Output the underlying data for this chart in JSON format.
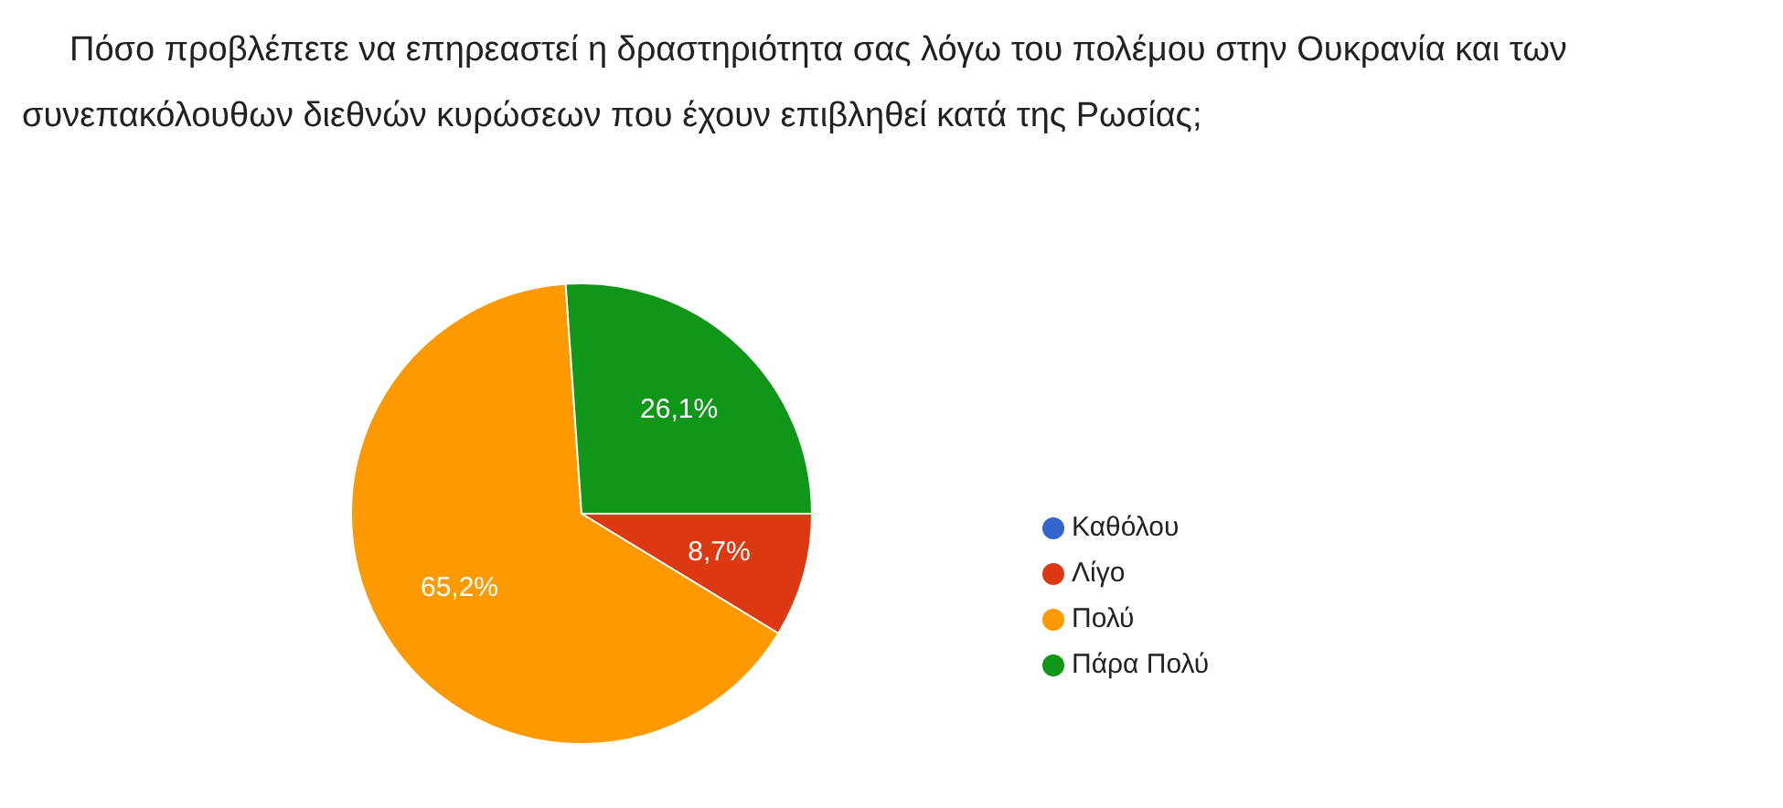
{
  "chart_data": {
    "type": "pie",
    "title": "Πόσο προβλέπετε να επηρεαστεί η δραστηριότητα σας λόγω του πολέμου στην Ουκρανία και των συνεπακόλουθων διεθνών κυρώσεων που έχουν επιβληθεί κατά της Ρωσίας;",
    "categories": [
      "Καθόλου",
      "Λίγο",
      "Πολύ",
      "Πάρα Πολύ"
    ],
    "values": [
      0,
      8.7,
      65.2,
      26.1
    ],
    "colors": [
      "#3366cc",
      "#dc3912",
      "#ff9900",
      "#109618"
    ],
    "value_labels": [
      null,
      "8,7%",
      "65,2%",
      "26,1%"
    ],
    "legend": "right"
  }
}
